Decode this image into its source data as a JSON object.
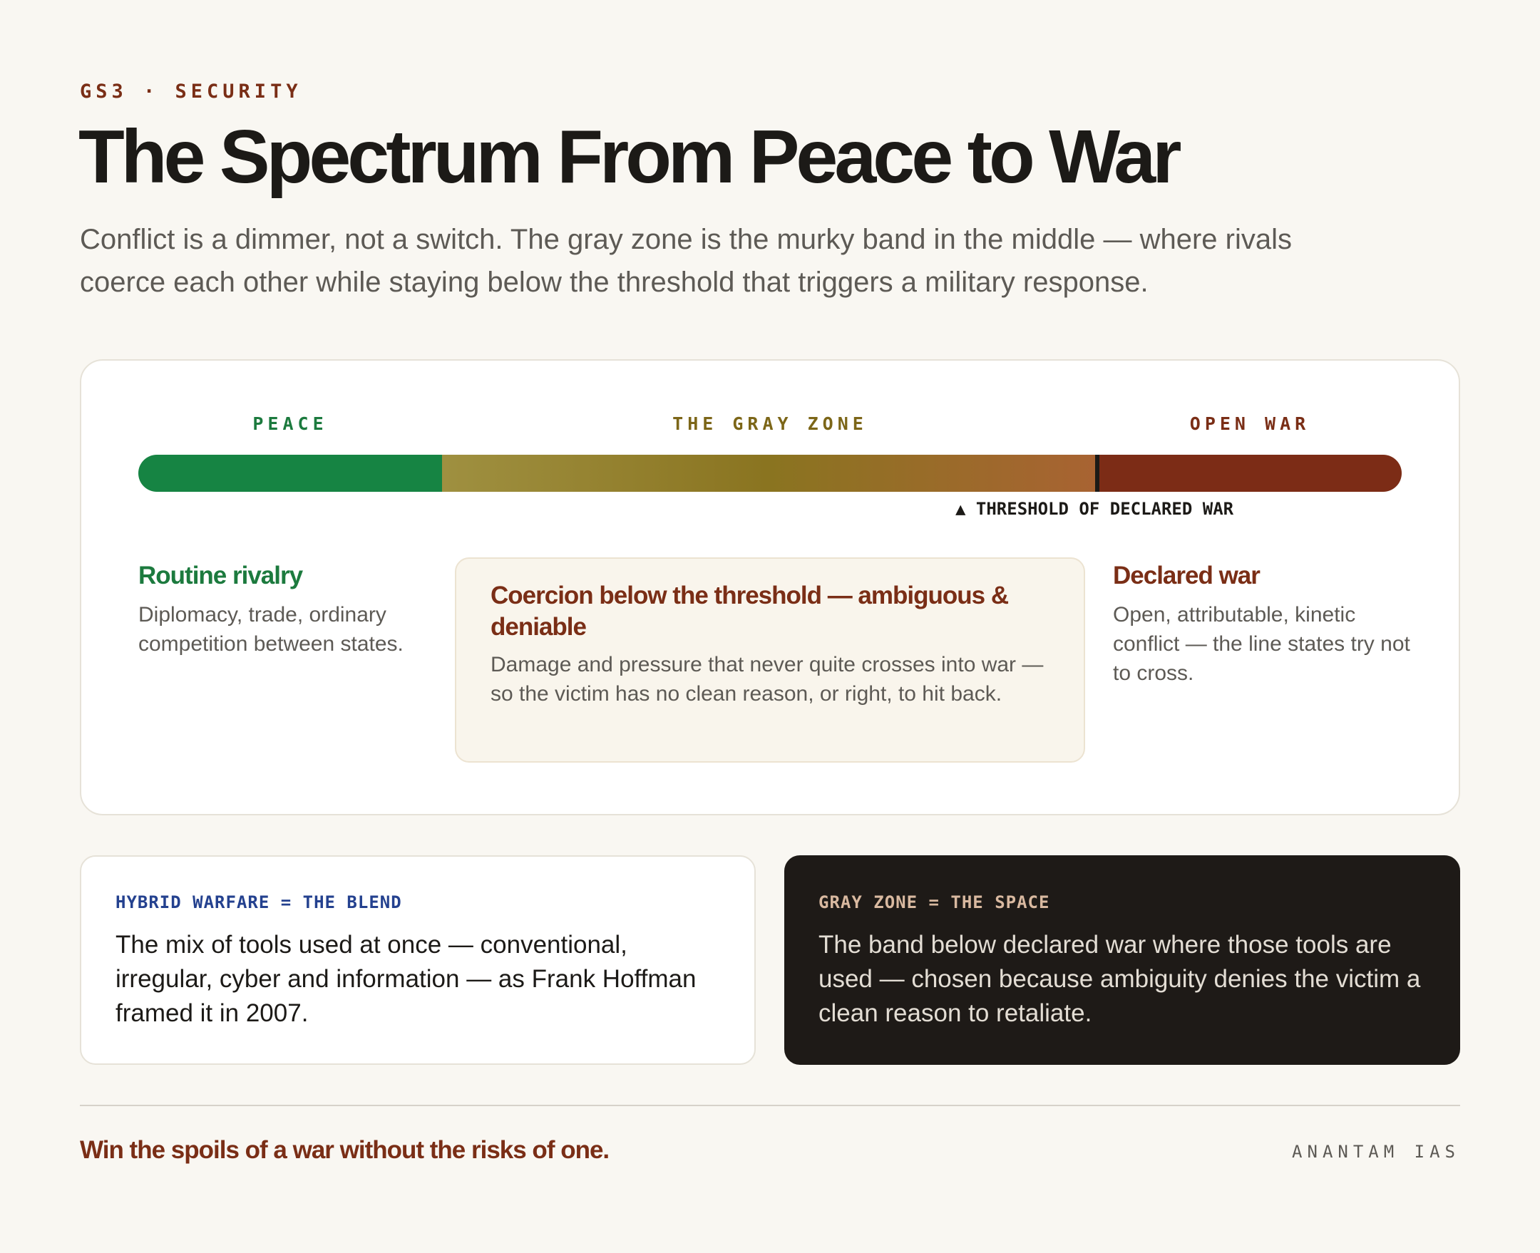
{
  "header": {
    "kicker": "GS3 · SECURITY",
    "title": "The Spectrum From Peace to War",
    "subtitle": "Conflict is a dimmer, not a switch. The gray zone is the murky band in the middle — where rivals coerce each other while staying below the threshold that triggers a military response."
  },
  "spectrum": {
    "zones": {
      "peace": "PEACE",
      "gray": "THE GRAY ZONE",
      "war": "OPEN WAR"
    },
    "threshold_label": "▲ THRESHOLD OF DECLARED WAR",
    "colors": {
      "peace": "#168443",
      "gray_start": "#9f9040",
      "gray_mid": "#8a7420",
      "gray_end": "#a86332",
      "war": "#7c2c16"
    }
  },
  "columns": {
    "peace": {
      "title": "Routine rivalry",
      "text": "Diplomacy, trade, ordinary competition between states."
    },
    "gray": {
      "title": "Coercion below the threshold — ambiguous & deniable",
      "text": "Damage and pressure that never quite crosses into war — so the victim has no clean reason, or right, to hit back."
    },
    "war": {
      "title": "Declared war",
      "text": "Open, attributable, kinetic conflict — the line states try not to cross."
    }
  },
  "cards": {
    "hybrid": {
      "label": "HYBRID WARFARE = THE BLEND",
      "text": "The mix of tools used at once — conventional, irregular, cyber and information — as Frank Hoffman framed it in 2007."
    },
    "grayzone": {
      "label": "GRAY ZONE = THE SPACE",
      "text": "The band below declared war where those tools are used — chosen because ambiguity denies the victim a clean reason to retaliate."
    }
  },
  "footer": {
    "tagline": "Win the spoils of a war without the risks of one.",
    "brand": "ANANTAM IAS"
  }
}
